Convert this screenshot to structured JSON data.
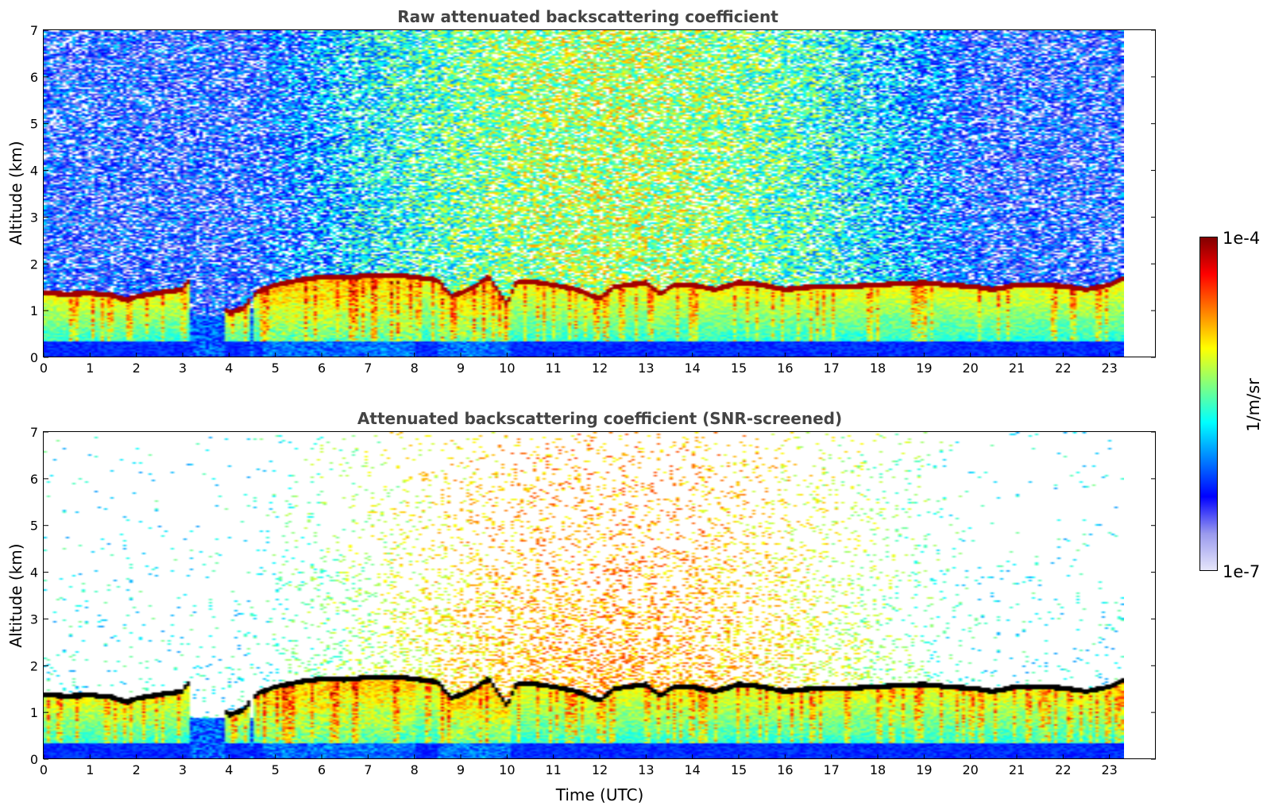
{
  "chart_data": [
    {
      "type": "heatmap",
      "title": "Raw attenuated backscattering coefficient",
      "xlabel": "",
      "ylabel": "Altitude (km)",
      "xlim": [
        0,
        24
      ],
      "ylim": [
        0,
        7
      ],
      "xticks": [
        "0",
        "1",
        "2",
        "3",
        "4",
        "5",
        "6",
        "7",
        "8",
        "9",
        "10",
        "11",
        "12",
        "13",
        "14",
        "15",
        "16",
        "17",
        "18",
        "19",
        "20",
        "21",
        "22",
        "23"
      ],
      "yticks": [
        "0",
        "1",
        "2",
        "3",
        "4",
        "5",
        "6",
        "7"
      ],
      "data_end_time": 23.3,
      "boundary_layer_top_km": [
        [
          0,
          1.38
        ],
        [
          0.5,
          1.35
        ],
        [
          1,
          1.37
        ],
        [
          1.5,
          1.32
        ],
        [
          1.8,
          1.22
        ],
        [
          2,
          1.3
        ],
        [
          2.5,
          1.38
        ],
        [
          3,
          1.45
        ],
        [
          3.1,
          1.62
        ],
        [
          4.0,
          0.95
        ],
        [
          4.3,
          1.05
        ],
        [
          4.6,
          1.4
        ],
        [
          5,
          1.55
        ],
        [
          5.5,
          1.65
        ],
        [
          6,
          1.72
        ],
        [
          6.5,
          1.7
        ],
        [
          7,
          1.75
        ],
        [
          7.5,
          1.76
        ],
        [
          8,
          1.72
        ],
        [
          8.5,
          1.65
        ],
        [
          8.8,
          1.3
        ],
        [
          9.2,
          1.45
        ],
        [
          9.6,
          1.72
        ],
        [
          10,
          1.15
        ],
        [
          10.2,
          1.6
        ],
        [
          10.5,
          1.62
        ],
        [
          11,
          1.55
        ],
        [
          11.5,
          1.45
        ],
        [
          12,
          1.25
        ],
        [
          12.3,
          1.5
        ],
        [
          12.6,
          1.55
        ],
        [
          13,
          1.6
        ],
        [
          13.3,
          1.35
        ],
        [
          13.6,
          1.55
        ],
        [
          14,
          1.55
        ],
        [
          14.5,
          1.45
        ],
        [
          15,
          1.6
        ],
        [
          15.5,
          1.55
        ],
        [
          16,
          1.45
        ],
        [
          16.5,
          1.5
        ],
        [
          17,
          1.5
        ],
        [
          17.5,
          1.52
        ],
        [
          18,
          1.55
        ],
        [
          18.5,
          1.58
        ],
        [
          19,
          1.6
        ],
        [
          19.5,
          1.55
        ],
        [
          20,
          1.52
        ],
        [
          20.5,
          1.45
        ],
        [
          21,
          1.55
        ],
        [
          21.5,
          1.55
        ],
        [
          22,
          1.52
        ],
        [
          22.5,
          1.45
        ],
        [
          23,
          1.55
        ],
        [
          23.3,
          1.68
        ]
      ]
    },
    {
      "type": "heatmap",
      "title": "Attenuated backscattering coefficient (SNR-screened)",
      "xlabel": "Time (UTC)",
      "ylabel": "Altitude (km)",
      "xlim": [
        0,
        24
      ],
      "ylim": [
        0,
        7
      ],
      "xticks": [
        "0",
        "1",
        "2",
        "3",
        "4",
        "5",
        "6",
        "7",
        "8",
        "9",
        "10",
        "11",
        "12",
        "13",
        "14",
        "15",
        "16",
        "17",
        "18",
        "19",
        "20",
        "21",
        "22",
        "23"
      ],
      "yticks": [
        "0",
        "1",
        "2",
        "3",
        "4",
        "5",
        "6",
        "7"
      ],
      "data_end_time": 23.3
    }
  ],
  "colorbar": {
    "label": "1/m/sr",
    "max_label": "1e-4",
    "min_label": "1e-7",
    "scale": "log",
    "colormap": "jet",
    "colors": [
      "#e6e6fa",
      "#9999ee",
      "#0000ff",
      "#0080ff",
      "#00ffff",
      "#80ff80",
      "#ffff00",
      "#ff8000",
      "#ff0000",
      "#800000"
    ]
  }
}
